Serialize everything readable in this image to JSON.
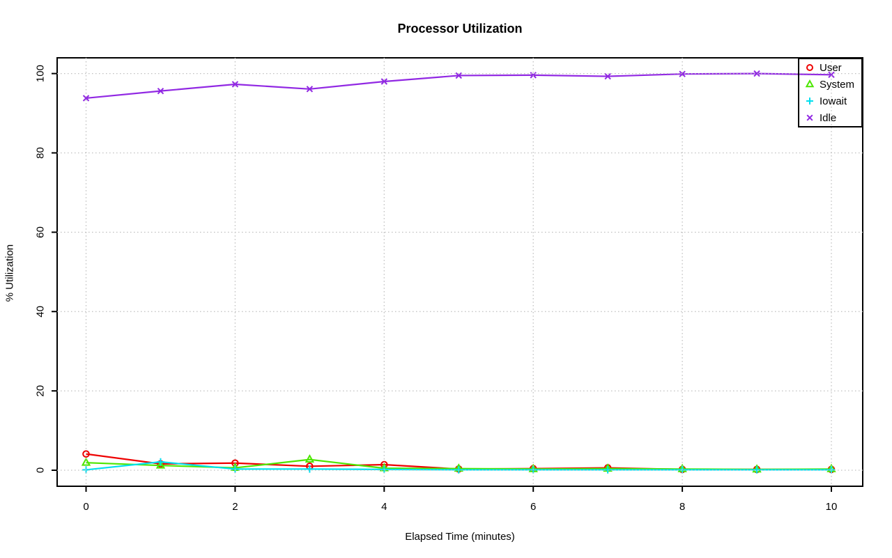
{
  "chart_data": {
    "type": "line",
    "title": "Processor Utilization",
    "xlabel": "Elapsed Time (minutes)",
    "ylabel": "% Utilization",
    "x": [
      0,
      1,
      2,
      3,
      4,
      5,
      6,
      7,
      8,
      9,
      10
    ],
    "xlim": [
      0,
      10
    ],
    "ylim": [
      0,
      100
    ],
    "xticks": [
      0,
      2,
      4,
      6,
      8,
      10
    ],
    "yticks": [
      0,
      20,
      40,
      60,
      80,
      100
    ],
    "grid": true,
    "grid_style": "dotted-gray",
    "legend_position": "top-right",
    "series": [
      {
        "name": "User",
        "color": "#ee0000",
        "marker": "circle",
        "values": [
          4.1,
          1.6,
          1.8,
          1.0,
          1.4,
          0.3,
          0.4,
          0.6,
          0.2,
          0.2,
          0.2
        ]
      },
      {
        "name": "System",
        "color": "#4ce600",
        "marker": "triangle",
        "values": [
          1.9,
          1.2,
          0.6,
          2.7,
          0.5,
          0.4,
          0.3,
          0.4,
          0.3,
          0.2,
          0.3
        ]
      },
      {
        "name": "Iowait",
        "color": "#00dfef",
        "marker": "plus",
        "values": [
          0.1,
          2.1,
          0.3,
          0.3,
          0.2,
          0.1,
          0.1,
          0.1,
          0.1,
          0.1,
          0.1
        ]
      },
      {
        "name": "Idle",
        "color": "#9128e3",
        "marker": "x",
        "values": [
          93.8,
          95.6,
          97.3,
          96.1,
          98.0,
          99.5,
          99.6,
          99.3,
          99.9,
          100.0,
          99.7
        ]
      }
    ]
  },
  "colors": {
    "axis": "#000000",
    "gridline": "#bfbfbf",
    "background": "#ffffff"
  }
}
